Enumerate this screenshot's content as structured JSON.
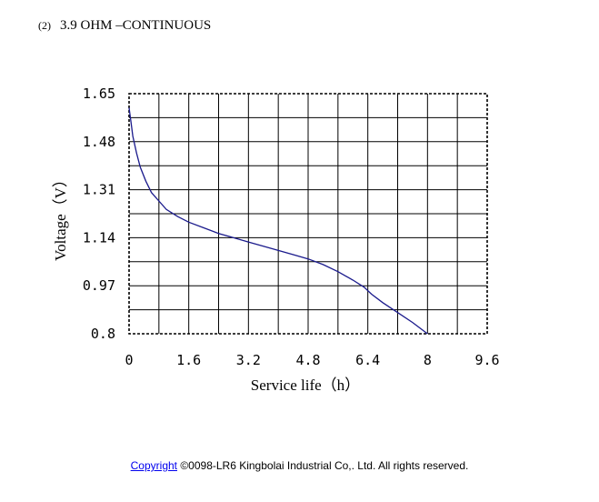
{
  "heading": {
    "number": "(2)",
    "title": "3.9 OHM –CONTINUOUS"
  },
  "chart_data": {
    "type": "line",
    "title": "",
    "xlabel": "Service life（h）",
    "ylabel": "Voltage（V）",
    "xlim": [
      0,
      9.6
    ],
    "ylim": [
      0.8,
      1.65
    ],
    "x_ticks": [
      0,
      1.6,
      3.2,
      4.8,
      6.4,
      8,
      9.6
    ],
    "x_tick_labels": [
      "0",
      "1.6",
      "3.2",
      "4.8",
      "6.4",
      "8",
      "9.6"
    ],
    "y_ticks": [
      1.65,
      1.48,
      1.31,
      1.14,
      0.97,
      0.8
    ],
    "y_tick_labels": [
      "1.65",
      "1.48",
      "1.31",
      "1.14",
      "0.97",
      "0.8"
    ],
    "grid": true,
    "series": [
      {
        "color": "#1a1a8c",
        "x": [
          0,
          0.05,
          0.1,
          0.2,
          0.3,
          0.45,
          0.6,
          0.8,
          1.0,
          1.3,
          1.6,
          2.0,
          2.4,
          2.8,
          3.2,
          3.6,
          4.0,
          4.4,
          4.8,
          5.2,
          5.6,
          6.0,
          6.3,
          6.5,
          6.8,
          7.2,
          7.6,
          8.0
        ],
        "y": [
          1.6,
          1.55,
          1.5,
          1.44,
          1.39,
          1.34,
          1.3,
          1.27,
          1.24,
          1.215,
          1.195,
          1.175,
          1.155,
          1.14,
          1.125,
          1.11,
          1.095,
          1.08,
          1.065,
          1.045,
          1.02,
          0.99,
          0.965,
          0.94,
          0.91,
          0.875,
          0.84,
          0.8
        ]
      }
    ]
  },
  "footer": {
    "link_text": "Copyright",
    "text": " ©0098-LR6 Kingbolai Industrial Co,. Ltd. All rights reserved."
  }
}
